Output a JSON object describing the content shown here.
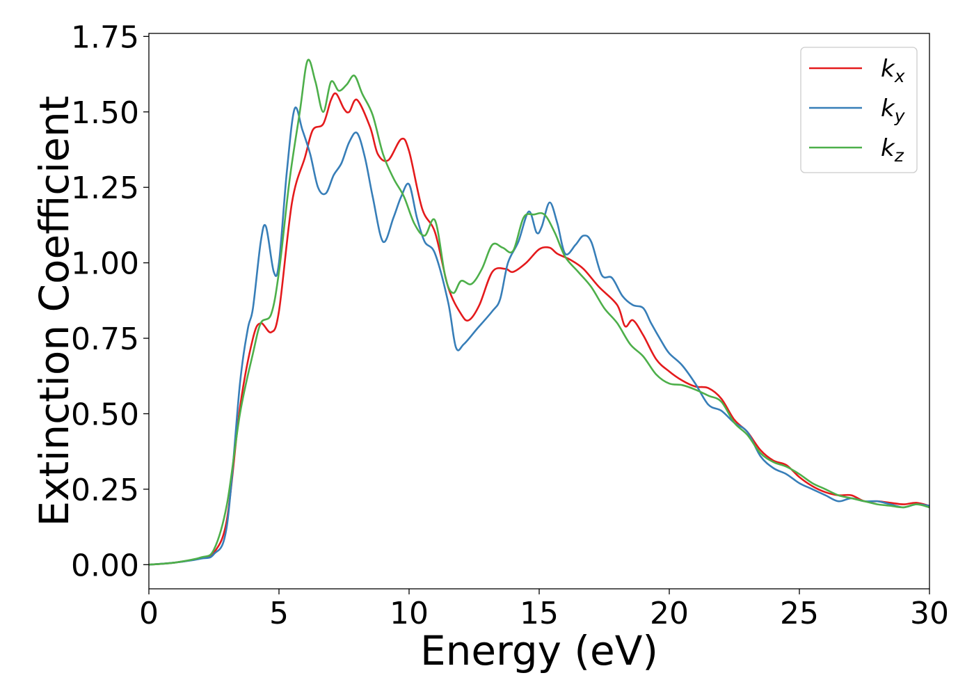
{
  "chart_data": {
    "type": "line",
    "xlabel": "Energy (eV)",
    "ylabel": "Extinction Coefficient",
    "xlim": [
      0,
      30
    ],
    "ylim": [
      -0.08,
      1.76
    ],
    "xticks": [
      0,
      5,
      10,
      15,
      20,
      25,
      30
    ],
    "xtick_labels": [
      "0",
      "5",
      "10",
      "15",
      "20",
      "25",
      "30"
    ],
    "yticks": [
      0,
      0.25,
      0.5,
      0.75,
      1.0,
      1.25,
      1.5,
      1.75
    ],
    "ytick_labels": [
      "0.00",
      "0.25",
      "0.50",
      "0.75",
      "1.00",
      "1.25",
      "1.50",
      "1.75"
    ],
    "grid": false,
    "legend_position": "top-right",
    "series": [
      {
        "name": "kx",
        "label_main": "k",
        "label_sub": "x",
        "color": "#e41a1c",
        "points": [
          [
            0,
            0
          ],
          [
            1,
            0.007
          ],
          [
            2,
            0.022
          ],
          [
            2.5,
            0.04
          ],
          [
            3,
            0.15
          ],
          [
            3.5,
            0.52
          ],
          [
            4,
            0.75
          ],
          [
            4.3,
            0.8
          ],
          [
            4.7,
            0.77
          ],
          [
            5,
            0.84
          ],
          [
            5.5,
            1.2
          ],
          [
            6,
            1.35
          ],
          [
            6.3,
            1.44
          ],
          [
            6.7,
            1.46
          ],
          [
            7,
            1.54
          ],
          [
            7.2,
            1.56
          ],
          [
            7.5,
            1.51
          ],
          [
            7.7,
            1.5
          ],
          [
            8,
            1.54
          ],
          [
            8.5,
            1.45
          ],
          [
            8.8,
            1.36
          ],
          [
            9.2,
            1.34
          ],
          [
            9.7,
            1.41
          ],
          [
            10,
            1.37
          ],
          [
            10.5,
            1.18
          ],
          [
            11,
            1.1
          ],
          [
            11.5,
            0.92
          ],
          [
            12,
            0.83
          ],
          [
            12.3,
            0.81
          ],
          [
            12.7,
            0.86
          ],
          [
            13.2,
            0.97
          ],
          [
            13.7,
            0.98
          ],
          [
            14,
            0.97
          ],
          [
            14.5,
            1.0
          ],
          [
            15,
            1.045
          ],
          [
            15.4,
            1.05
          ],
          [
            15.7,
            1.03
          ],
          [
            16.2,
            1.01
          ],
          [
            16.7,
            0.98
          ],
          [
            17.3,
            0.92
          ],
          [
            18,
            0.86
          ],
          [
            18.3,
            0.79
          ],
          [
            18.6,
            0.81
          ],
          [
            19,
            0.76
          ],
          [
            19.5,
            0.68
          ],
          [
            20,
            0.64
          ],
          [
            20.5,
            0.61
          ],
          [
            21,
            0.59
          ],
          [
            21.5,
            0.585
          ],
          [
            22,
            0.55
          ],
          [
            22.5,
            0.48
          ],
          [
            23,
            0.44
          ],
          [
            23.5,
            0.38
          ],
          [
            24,
            0.345
          ],
          [
            24.5,
            0.33
          ],
          [
            25,
            0.29
          ],
          [
            25.5,
            0.26
          ],
          [
            26,
            0.24
          ],
          [
            26.5,
            0.23
          ],
          [
            27,
            0.23
          ],
          [
            27.5,
            0.21
          ],
          [
            28,
            0.21
          ],
          [
            28.5,
            0.205
          ],
          [
            29,
            0.2
          ],
          [
            29.5,
            0.205
          ],
          [
            30,
            0.195
          ]
        ]
      },
      {
        "name": "ky",
        "label_main": "k",
        "label_sub": "y",
        "color": "#377eb8",
        "points": [
          [
            0,
            0
          ],
          [
            1,
            0.007
          ],
          [
            2,
            0.02
          ],
          [
            2.5,
            0.035
          ],
          [
            3,
            0.13
          ],
          [
            3.5,
            0.6
          ],
          [
            3.8,
            0.78
          ],
          [
            4,
            0.85
          ],
          [
            4.3,
            1.07
          ],
          [
            4.5,
            1.12
          ],
          [
            4.8,
            0.97
          ],
          [
            5,
            1.0
          ],
          [
            5.3,
            1.3
          ],
          [
            5.6,
            1.51
          ],
          [
            5.9,
            1.44
          ],
          [
            6.2,
            1.36
          ],
          [
            6.5,
            1.25
          ],
          [
            6.8,
            1.23
          ],
          [
            7.1,
            1.29
          ],
          [
            7.4,
            1.33
          ],
          [
            7.7,
            1.4
          ],
          [
            8,
            1.43
          ],
          [
            8.3,
            1.35
          ],
          [
            8.6,
            1.22
          ],
          [
            9,
            1.07
          ],
          [
            9.4,
            1.15
          ],
          [
            9.7,
            1.22
          ],
          [
            10,
            1.26
          ],
          [
            10.3,
            1.15
          ],
          [
            10.6,
            1.07
          ],
          [
            11,
            1.03
          ],
          [
            11.5,
            0.87
          ],
          [
            11.8,
            0.72
          ],
          [
            12.1,
            0.73
          ],
          [
            12.6,
            0.78
          ],
          [
            13.2,
            0.84
          ],
          [
            13.5,
            0.88
          ],
          [
            13.8,
            1.0
          ],
          [
            14.2,
            1.07
          ],
          [
            14.6,
            1.17
          ],
          [
            14.9,
            1.1
          ],
          [
            15.1,
            1.12
          ],
          [
            15.4,
            1.2
          ],
          [
            15.7,
            1.13
          ],
          [
            16,
            1.03
          ],
          [
            16.4,
            1.06
          ],
          [
            16.7,
            1.09
          ],
          [
            17,
            1.07
          ],
          [
            17.4,
            0.96
          ],
          [
            17.8,
            0.95
          ],
          [
            18.2,
            0.89
          ],
          [
            18.6,
            0.86
          ],
          [
            19,
            0.85
          ],
          [
            19.3,
            0.8
          ],
          [
            19.7,
            0.74
          ],
          [
            20,
            0.7
          ],
          [
            20.5,
            0.66
          ],
          [
            21,
            0.6
          ],
          [
            21.5,
            0.53
          ],
          [
            22,
            0.51
          ],
          [
            22.5,
            0.47
          ],
          [
            23,
            0.44
          ],
          [
            23.5,
            0.36
          ],
          [
            24,
            0.32
          ],
          [
            24.5,
            0.3
          ],
          [
            25,
            0.27
          ],
          [
            25.5,
            0.25
          ],
          [
            26,
            0.23
          ],
          [
            26.5,
            0.21
          ],
          [
            27,
            0.22
          ],
          [
            27.5,
            0.21
          ],
          [
            28,
            0.21
          ],
          [
            28.5,
            0.2
          ],
          [
            29,
            0.19
          ],
          [
            29.5,
            0.2
          ],
          [
            30,
            0.195
          ]
        ]
      },
      {
        "name": "kz",
        "label_main": "k",
        "label_sub": "z",
        "color": "#4daf4a",
        "points": [
          [
            0,
            0
          ],
          [
            1,
            0.007
          ],
          [
            2,
            0.024
          ],
          [
            2.5,
            0.05
          ],
          [
            3,
            0.2
          ],
          [
            3.5,
            0.5
          ],
          [
            4,
            0.7
          ],
          [
            4.3,
            0.8
          ],
          [
            4.7,
            0.83
          ],
          [
            5,
            0.97
          ],
          [
            5.4,
            1.27
          ],
          [
            5.8,
            1.5
          ],
          [
            6.1,
            1.67
          ],
          [
            6.4,
            1.6
          ],
          [
            6.7,
            1.5
          ],
          [
            7,
            1.6
          ],
          [
            7.3,
            1.57
          ],
          [
            7.6,
            1.59
          ],
          [
            7.9,
            1.62
          ],
          [
            8.2,
            1.56
          ],
          [
            8.6,
            1.49
          ],
          [
            9,
            1.36
          ],
          [
            9.4,
            1.28
          ],
          [
            9.8,
            1.22
          ],
          [
            10.2,
            1.13
          ],
          [
            10.6,
            1.09
          ],
          [
            11,
            1.14
          ],
          [
            11.4,
            0.95
          ],
          [
            11.7,
            0.9
          ],
          [
            12,
            0.94
          ],
          [
            12.4,
            0.93
          ],
          [
            12.8,
            0.98
          ],
          [
            13.2,
            1.06
          ],
          [
            13.6,
            1.05
          ],
          [
            14,
            1.04
          ],
          [
            14.4,
            1.15
          ],
          [
            14.8,
            1.16
          ],
          [
            15.2,
            1.16
          ],
          [
            15.6,
            1.1
          ],
          [
            16,
            1.02
          ],
          [
            16.5,
            0.97
          ],
          [
            17,
            0.92
          ],
          [
            17.5,
            0.85
          ],
          [
            18,
            0.8
          ],
          [
            18.5,
            0.73
          ],
          [
            19,
            0.69
          ],
          [
            19.5,
            0.63
          ],
          [
            20,
            0.6
          ],
          [
            20.5,
            0.595
          ],
          [
            21,
            0.58
          ],
          [
            21.5,
            0.56
          ],
          [
            22,
            0.54
          ],
          [
            22.5,
            0.47
          ],
          [
            23,
            0.43
          ],
          [
            23.5,
            0.37
          ],
          [
            24,
            0.34
          ],
          [
            24.5,
            0.325
          ],
          [
            25,
            0.3
          ],
          [
            25.5,
            0.27
          ],
          [
            26,
            0.25
          ],
          [
            26.5,
            0.23
          ],
          [
            27,
            0.22
          ],
          [
            27.5,
            0.21
          ],
          [
            28,
            0.2
          ],
          [
            28.5,
            0.195
          ],
          [
            29,
            0.19
          ],
          [
            29.5,
            0.2
          ],
          [
            30,
            0.19
          ]
        ]
      }
    ]
  }
}
